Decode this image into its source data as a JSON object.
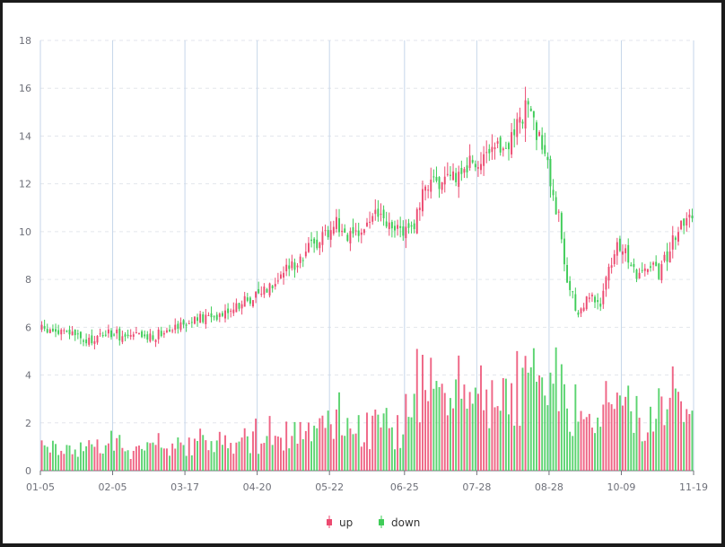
{
  "chart_data": {
    "type": "candlestick",
    "y_axis": {
      "min": 0,
      "max": 18,
      "ticks": [
        0,
        2,
        4,
        6,
        8,
        10,
        12,
        14,
        16,
        18
      ]
    },
    "x_axis": {
      "tick_labels": [
        "01-05",
        "02-05",
        "03-17",
        "04-20",
        "05-22",
        "06-25",
        "07-28",
        "08-28",
        "10-09",
        "11-19"
      ],
      "num_days": 235
    },
    "colors": {
      "up": "#ec4a70",
      "down": "#3fcc58"
    },
    "legend": [
      "up",
      "down"
    ],
    "grid": true,
    "series": [
      {
        "name": "up",
        "role": "rising"
      },
      {
        "name": "down",
        "role": "falling"
      }
    ],
    "close_path": [
      [
        0,
        5.9
      ],
      [
        12,
        5.7
      ],
      [
        16,
        5.3
      ],
      [
        23,
        5.8
      ],
      [
        30,
        5.6
      ],
      [
        40,
        5.6
      ],
      [
        46,
        6.05
      ],
      [
        60,
        6.4
      ],
      [
        72,
        7.0
      ],
      [
        80,
        7.6
      ],
      [
        90,
        8.6
      ],
      [
        98,
        9.5
      ],
      [
        106,
        10.4
      ],
      [
        112,
        9.6
      ],
      [
        120,
        10.8
      ],
      [
        126,
        10.0
      ],
      [
        134,
        10.3
      ],
      [
        140,
        12.5
      ],
      [
        144,
        11.8
      ],
      [
        150,
        12.5
      ],
      [
        156,
        13.0
      ],
      [
        160,
        12.9
      ],
      [
        168,
        13.8
      ],
      [
        174,
        15.2
      ],
      [
        178,
        14.2
      ],
      [
        182,
        12.6
      ],
      [
        186,
        10.5
      ],
      [
        188,
        8.4
      ],
      [
        191,
        7.4
      ],
      [
        193,
        6.5
      ],
      [
        195,
        6.9
      ],
      [
        198,
        7.5
      ],
      [
        201,
        6.8
      ],
      [
        204,
        8.4
      ],
      [
        207,
        9.6
      ],
      [
        210,
        9.2
      ],
      [
        214,
        8.2
      ],
      [
        218,
        8.6
      ],
      [
        222,
        8.3
      ],
      [
        226,
        9.3
      ],
      [
        230,
        10.3
      ],
      [
        233,
        11.0
      ],
      [
        235,
        10.5
      ]
    ],
    "volume_max": 5.2
  }
}
